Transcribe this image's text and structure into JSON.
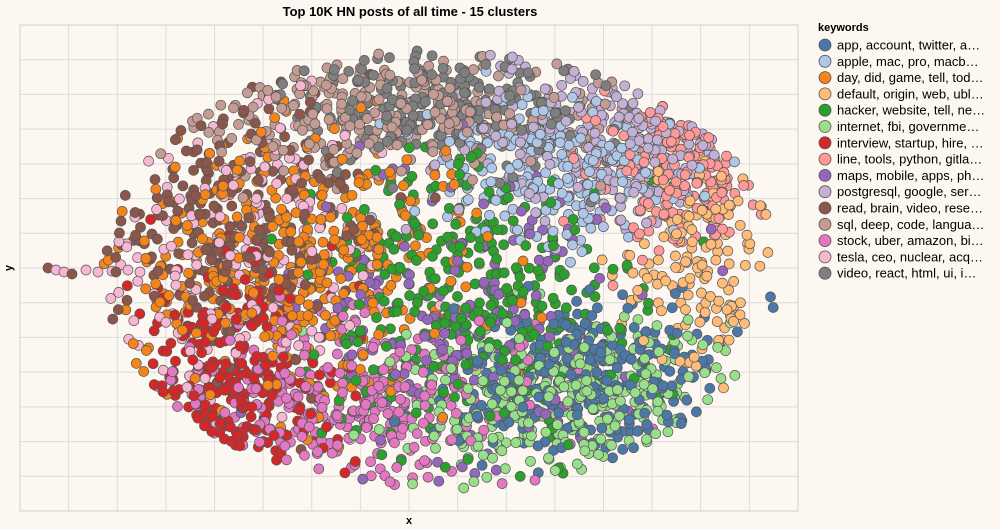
{
  "chart_data": {
    "type": "scatter",
    "title": "Top 10K HN posts of all time - 15 clusters",
    "xlabel": "x",
    "ylabel": "y",
    "grid": true,
    "legend_title": "keywords",
    "legend_position": "right",
    "background": "#fcf7f0",
    "series": [
      {
        "name": "app, account, twitter, a…",
        "color": "#4c78a8"
      },
      {
        "name": "apple, mac, pro, macb…",
        "color": "#aec7e8"
      },
      {
        "name": "day, did, game, tell, tod…",
        "color": "#f58518"
      },
      {
        "name": "default, origin, web, ubl…",
        "color": "#ffbb78"
      },
      {
        "name": "hacker, website, tell, ne…",
        "color": "#2ca02c"
      },
      {
        "name": "internet, fbi, governme…",
        "color": "#98df8a"
      },
      {
        "name": "interview, startup, hire, …",
        "color": "#d62728"
      },
      {
        "name": "line, tools, python, gitla…",
        "color": "#ff9896"
      },
      {
        "name": "maps, mobile, apps, ph…",
        "color": "#9467bd"
      },
      {
        "name": "postgresql, google, ser…",
        "color": "#c5b0d5"
      },
      {
        "name": "read, brain, video, rese…",
        "color": "#8c564b"
      },
      {
        "name": "sql, deep, code, langua…",
        "color": "#c49c94"
      },
      {
        "name": "stock, uber, amazon, bi…",
        "color": "#e377c2"
      },
      {
        "name": "tesla, ceo, nuclear, acq…",
        "color": "#f7b6d2"
      },
      {
        "name": "video, react, html, ui, i…",
        "color": "#7f7f7f"
      }
    ]
  }
}
